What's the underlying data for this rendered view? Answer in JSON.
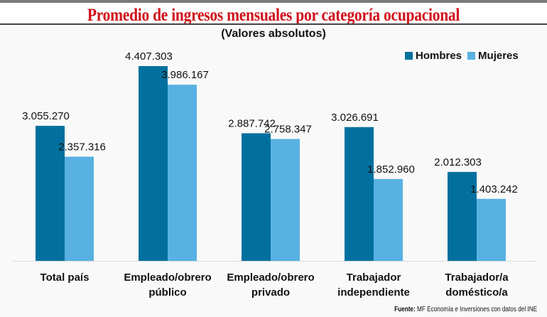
{
  "chart_data": {
    "type": "bar",
    "title": "Promedio de ingresos mensuales por categoría ocupacional",
    "subtitle": "(Valores absolutos)",
    "categories": [
      [
        "Total país"
      ],
      [
        "Empleado/obrero",
        "público"
      ],
      [
        "Empleado/obrero",
        "privado"
      ],
      [
        "Trabajador",
        "independiente"
      ],
      [
        "Trabajador/a",
        "doméstico/a"
      ]
    ],
    "series": [
      {
        "name": "Hombres",
        "color": "#01709e",
        "values": [
          3055270,
          4407303,
          2887742,
          3026691,
          2012303
        ],
        "labels": [
          "3.055.270",
          "4.407.303",
          "2.887.742",
          "3.026.691",
          "2.012.303"
        ]
      },
      {
        "name": "Mujeres",
        "color": "#58b1e2",
        "values": [
          2357316,
          3986167,
          2758347,
          1852960,
          1403242
        ],
        "labels": [
          "2.357.316",
          "3.986.167",
          "2.758.347",
          "1.852.960",
          "1.403.242"
        ]
      }
    ],
    "xlabel": "",
    "ylabel": "",
    "ylim": [
      0,
      4407303
    ],
    "grid": false,
    "legend": "top-right"
  },
  "source": {
    "label": "Fuente:",
    "text": "MF Economía e Inversiones con datos del INE"
  }
}
